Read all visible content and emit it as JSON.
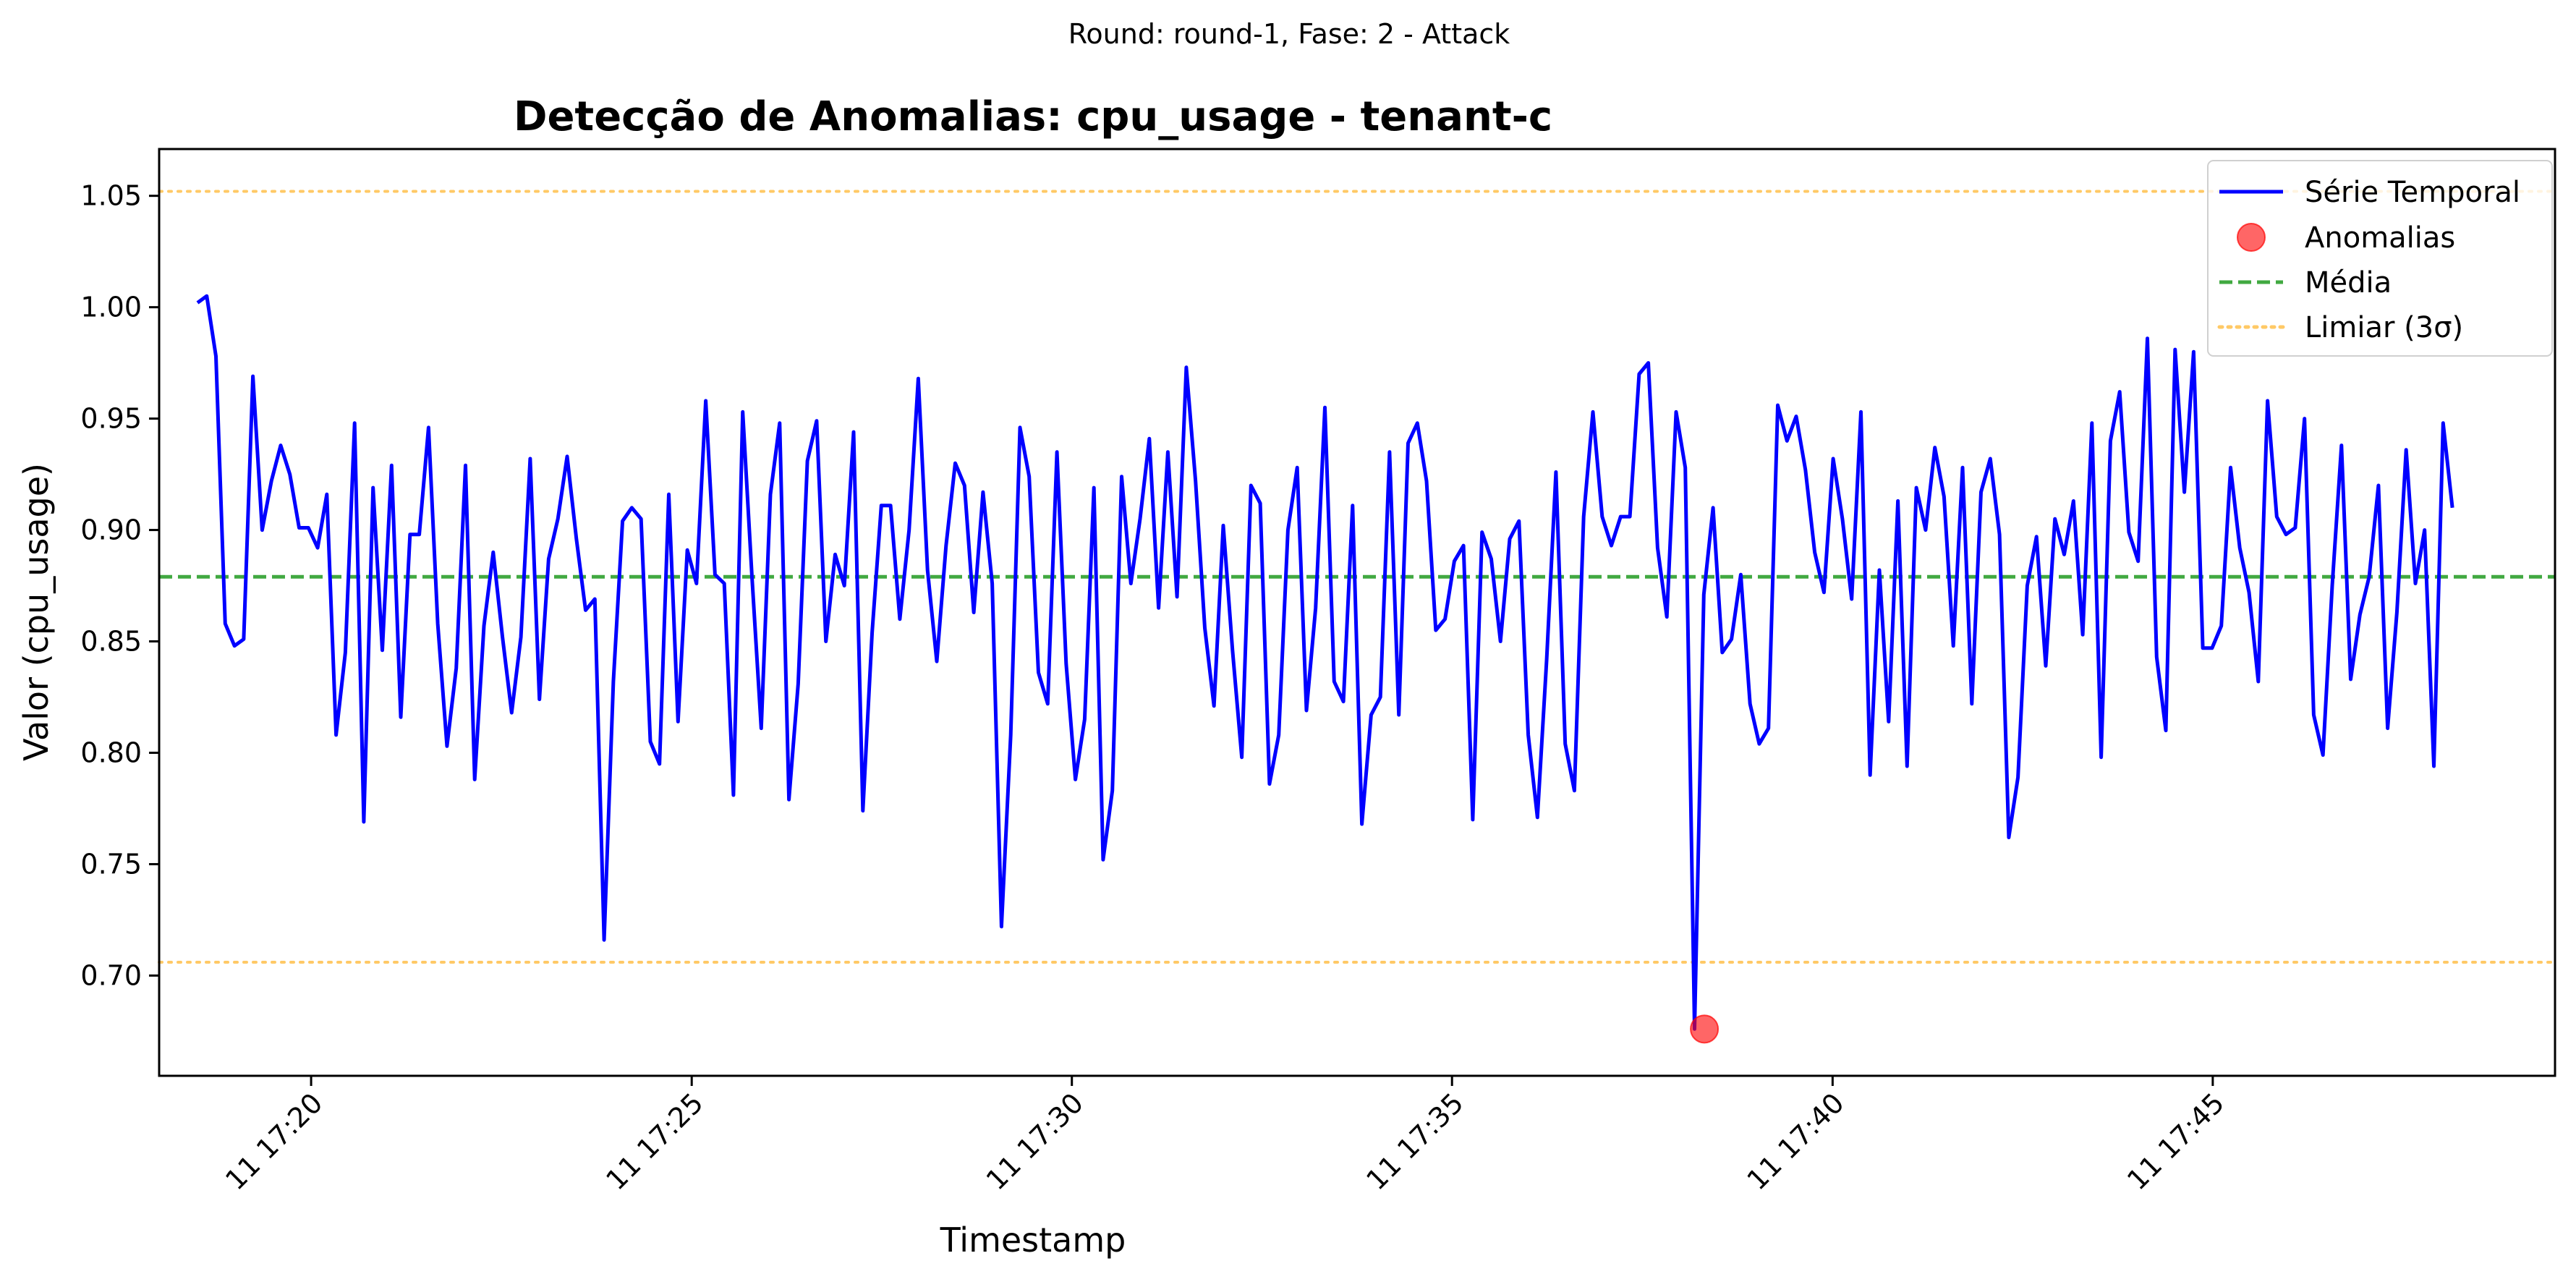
{
  "chart_data": {
    "type": "line",
    "suptitle": "Round: round-1, Fase: 2 - Attack",
    "title": "Detecção de Anomalias: cpu_usage - tenant-c",
    "xlabel": "Timestamp",
    "ylabel": "Valor (cpu_usage)",
    "xlim": [
      17.3,
      17.825
    ],
    "ylim": [
      0.655,
      1.071
    ],
    "x_ticks": [
      {
        "value": 17.3333,
        "label": "11 17:20"
      },
      {
        "value": 17.4167,
        "label": "11 17:25"
      },
      {
        "value": 17.5,
        "label": "11 17:30"
      },
      {
        "value": 17.5833,
        "label": "11 17:35"
      },
      {
        "value": 17.6667,
        "label": "11 17:40"
      },
      {
        "value": 17.75,
        "label": "11 17:45"
      }
    ],
    "y_ticks": [
      {
        "value": 0.7,
        "label": "0.70"
      },
      {
        "value": 0.75,
        "label": "0.75"
      },
      {
        "value": 0.8,
        "label": "0.80"
      },
      {
        "value": 0.85,
        "label": "0.85"
      },
      {
        "value": 0.9,
        "label": "0.90"
      },
      {
        "value": 0.95,
        "label": "0.95"
      },
      {
        "value": 1.0,
        "label": "1.00"
      },
      {
        "value": 1.05,
        "label": "1.05"
      }
    ],
    "mean": 0.879,
    "upper_threshold": 1.052,
    "lower_threshold": 0.706,
    "series_values": [
      1.002,
      1.005,
      0.978,
      0.858,
      0.848,
      0.851,
      0.969,
      0.9,
      0.922,
      0.938,
      0.925,
      0.901,
      0.901,
      0.892,
      0.916,
      0.808,
      0.845,
      0.948,
      0.769,
      0.919,
      0.846,
      0.929,
      0.816,
      0.898,
      0.898,
      0.946,
      0.858,
      0.803,
      0.838,
      0.929,
      0.788,
      0.857,
      0.89,
      0.852,
      0.818,
      0.852,
      0.932,
      0.824,
      0.887,
      0.905,
      0.933,
      0.896,
      0.864,
      0.869,
      0.716,
      0.832,
      0.904,
      0.91,
      0.905,
      0.805,
      0.795,
      0.916,
      0.814,
      0.891,
      0.876,
      0.958,
      0.88,
      0.876,
      0.781,
      0.953,
      0.879,
      0.811,
      0.916,
      0.948,
      0.779,
      0.831,
      0.931,
      0.949,
      0.85,
      0.889,
      0.875,
      0.944,
      0.774,
      0.854,
      0.911,
      0.911,
      0.86,
      0.9,
      0.968,
      0.882,
      0.841,
      0.893,
      0.93,
      0.92,
      0.863,
      0.917,
      0.876,
      0.722,
      0.808,
      0.946,
      0.924,
      0.836,
      0.822,
      0.935,
      0.84,
      0.788,
      0.815,
      0.919,
      0.752,
      0.783,
      0.924,
      0.876,
      0.905,
      0.941,
      0.865,
      0.935,
      0.87,
      0.973,
      0.922,
      0.856,
      0.821,
      0.902,
      0.846,
      0.798,
      0.92,
      0.912,
      0.786,
      0.808,
      0.9,
      0.928,
      0.819,
      0.865,
      0.955,
      0.832,
      0.823,
      0.911,
      0.768,
      0.817,
      0.825,
      0.935,
      0.817,
      0.939,
      0.948,
      0.922,
      0.855,
      0.86,
      0.886,
      0.893,
      0.77,
      0.899,
      0.887,
      0.85,
      0.896,
      0.904,
      0.808,
      0.771,
      0.842,
      0.926,
      0.804,
      0.783,
      0.906,
      0.953,
      0.906,
      0.893,
      0.906,
      0.906,
      0.97,
      0.975,
      0.892,
      0.861,
      0.953,
      0.928,
      0.676,
      0.871,
      0.91,
      0.845,
      0.851,
      0.88,
      0.822,
      0.804,
      0.811,
      0.956,
      0.94,
      0.951,
      0.927,
      0.89,
      0.872,
      0.932,
      0.905,
      0.869,
      0.953,
      0.79,
      0.882,
      0.814,
      0.913,
      0.794,
      0.919,
      0.9,
      0.937,
      0.915,
      0.848,
      0.928,
      0.822,
      0.917,
      0.932,
      0.898,
      0.762,
      0.789,
      0.875,
      0.897,
      0.839,
      0.905,
      0.889,
      0.913,
      0.853,
      0.948,
      0.798,
      0.94,
      0.962,
      0.899,
      0.886,
      0.986,
      0.843,
      0.81,
      0.981,
      0.917,
      0.98,
      0.847,
      0.847,
      0.857,
      0.928,
      0.892,
      0.872,
      0.832,
      0.958,
      0.906,
      0.898,
      0.901,
      0.95,
      0.817,
      0.799,
      0.875,
      0.938,
      0.833,
      0.862,
      0.879,
      0.92,
      0.811,
      0.863,
      0.936,
      0.876,
      0.9,
      0.794,
      0.948,
      0.91
    ],
    "series": [
      {
        "name": "Série Temporal",
        "color": "#0000ff",
        "style": "solid",
        "x_start": 17.3084,
        "x_end": 17.8025
      },
      {
        "name": "Anomalias",
        "color": "#ff0000",
        "x": 17.6386,
        "y": 0.676
      },
      {
        "name": "Média",
        "color": "#2ca02c",
        "style": "dashed"
      },
      {
        "name": "Limiar (3σ)",
        "color": "#ffa500",
        "style": "dotted"
      }
    ],
    "legend_position": "top-right",
    "grid": false
  }
}
